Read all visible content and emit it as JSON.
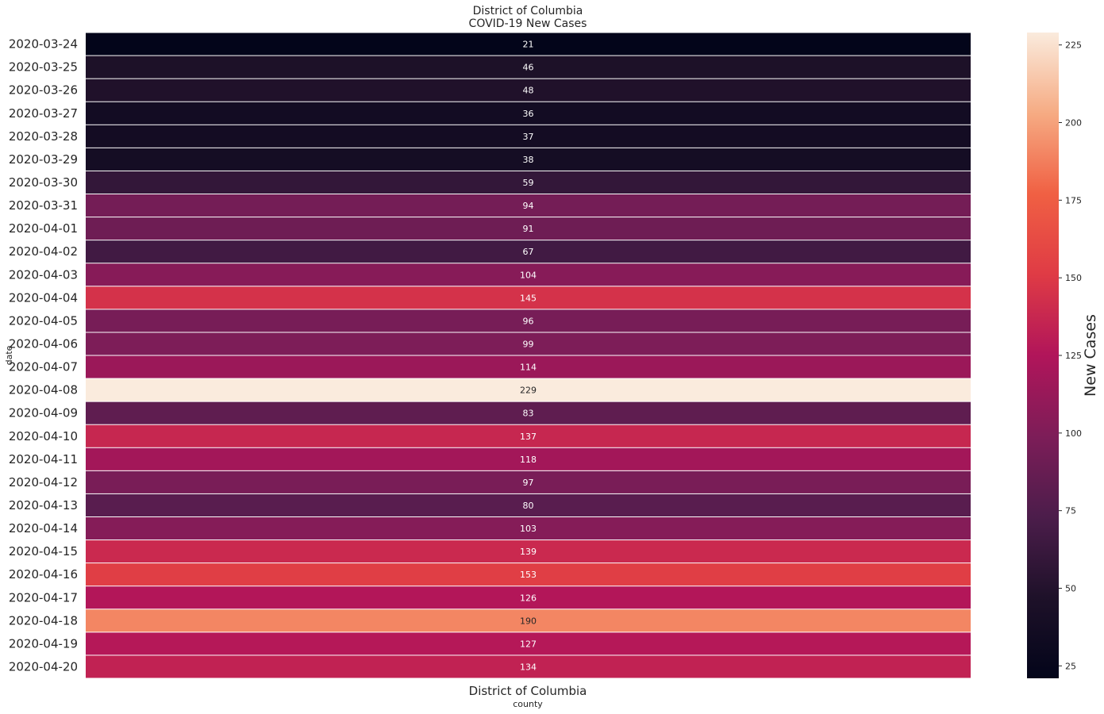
{
  "chart_data": {
    "type": "heatmap",
    "title_lines": [
      "District of Columbia",
      "COVID-19 New Cases"
    ],
    "xlabel": "county",
    "ylabel": "date",
    "columns": [
      "District of Columbia"
    ],
    "rows": [
      "2020-03-24",
      "2020-03-25",
      "2020-03-26",
      "2020-03-27",
      "2020-03-28",
      "2020-03-29",
      "2020-03-30",
      "2020-03-31",
      "2020-04-01",
      "2020-04-02",
      "2020-04-03",
      "2020-04-04",
      "2020-04-05",
      "2020-04-06",
      "2020-04-07",
      "2020-04-08",
      "2020-04-09",
      "2020-04-10",
      "2020-04-11",
      "2020-04-12",
      "2020-04-13",
      "2020-04-14",
      "2020-04-15",
      "2020-04-16",
      "2020-04-17",
      "2020-04-18",
      "2020-04-19",
      "2020-04-20"
    ],
    "values": [
      [
        21
      ],
      [
        46
      ],
      [
        48
      ],
      [
        36
      ],
      [
        37
      ],
      [
        38
      ],
      [
        59
      ],
      [
        94
      ],
      [
        91
      ],
      [
        67
      ],
      [
        104
      ],
      [
        145
      ],
      [
        96
      ],
      [
        99
      ],
      [
        114
      ],
      [
        229
      ],
      [
        83
      ],
      [
        137
      ],
      [
        118
      ],
      [
        97
      ],
      [
        80
      ],
      [
        103
      ],
      [
        139
      ],
      [
        153
      ],
      [
        126
      ],
      [
        190
      ],
      [
        127
      ],
      [
        134
      ]
    ],
    "colormap": "rocket",
    "vmin": 21,
    "vmax": 229,
    "annotations": true,
    "colorbar": {
      "label": "New Cases",
      "ticks": [
        25,
        50,
        75,
        100,
        125,
        150,
        175,
        200,
        225
      ]
    }
  }
}
